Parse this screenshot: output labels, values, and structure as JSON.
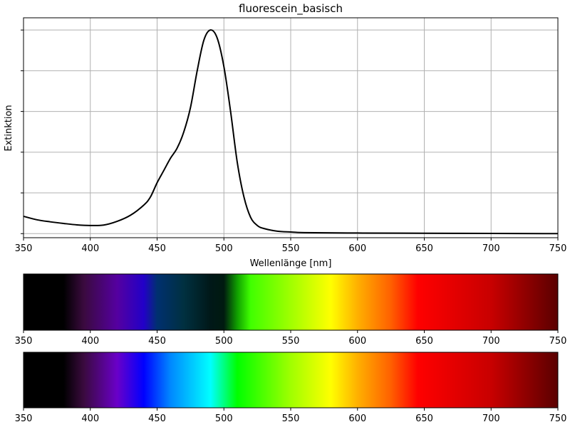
{
  "chart_data": [
    {
      "type": "line",
      "title": "fluorescein_basisch",
      "xlabel": "Wellenlänge [nm]",
      "ylabel": "Extinktion",
      "xlim": [
        350,
        750
      ],
      "ylim": [
        -0.02,
        1.06
      ],
      "x_ticks": [
        350,
        400,
        450,
        500,
        550,
        600,
        650,
        700,
        750
      ],
      "y_ticks": [
        0,
        0.2,
        0.4,
        0.6,
        0.8,
        1.0
      ],
      "y_tick_labels_shown": false,
      "grid": true,
      "series": [
        {
          "color": "#000000",
          "x": [
            350,
            360,
            370,
            380,
            390,
            400,
            410,
            420,
            430,
            440,
            445,
            450,
            455,
            460,
            465,
            470,
            475,
            480,
            485,
            490,
            495,
            500,
            505,
            510,
            515,
            520,
            525,
            530,
            540,
            550,
            560,
            600,
            650,
            700,
            750
          ],
          "y": [
            0.085,
            0.068,
            0.058,
            0.05,
            0.043,
            0.04,
            0.042,
            0.06,
            0.09,
            0.14,
            0.18,
            0.25,
            0.31,
            0.37,
            0.42,
            0.5,
            0.62,
            0.8,
            0.95,
            1.0,
            0.96,
            0.82,
            0.6,
            0.35,
            0.18,
            0.08,
            0.04,
            0.025,
            0.012,
            0.008,
            0.005,
            0.003,
            0.002,
            0.001,
            0.0
          ]
        }
      ]
    },
    {
      "type": "heatmap",
      "description_label": "absorption-weighted spectrum strip",
      "xlim": [
        350,
        750
      ],
      "x_ticks": [
        350,
        400,
        450,
        500,
        550,
        600,
        650,
        700,
        750
      ],
      "stops": [
        {
          "nm": 350,
          "color": "#000000"
        },
        {
          "nm": 380,
          "color": "#000000"
        },
        {
          "nm": 395,
          "color": "#3a0a3e"
        },
        {
          "nm": 420,
          "color": "#5500a0"
        },
        {
          "nm": 440,
          "color": "#2200c8"
        },
        {
          "nm": 450,
          "color": "#003070"
        },
        {
          "nm": 470,
          "color": "#003040"
        },
        {
          "nm": 490,
          "color": "#001818"
        },
        {
          "nm": 500,
          "color": "#001a10"
        },
        {
          "nm": 510,
          "color": "#10a000"
        },
        {
          "nm": 520,
          "color": "#40ff00"
        },
        {
          "nm": 550,
          "color": "#a0ff00"
        },
        {
          "nm": 580,
          "color": "#ffff00"
        },
        {
          "nm": 600,
          "color": "#ffb000"
        },
        {
          "nm": 625,
          "color": "#ff6000"
        },
        {
          "nm": 645,
          "color": "#ff0000"
        },
        {
          "nm": 700,
          "color": "#c80000"
        },
        {
          "nm": 750,
          "color": "#5a0000"
        }
      ]
    },
    {
      "type": "heatmap",
      "description_label": "visible spectrum strip",
      "xlim": [
        350,
        750
      ],
      "x_ticks": [
        350,
        400,
        450,
        500,
        550,
        600,
        650,
        700,
        750
      ],
      "stops": [
        {
          "nm": 350,
          "color": "#000000"
        },
        {
          "nm": 380,
          "color": "#000000"
        },
        {
          "nm": 395,
          "color": "#3a0a3e"
        },
        {
          "nm": 420,
          "color": "#6a00c8"
        },
        {
          "nm": 440,
          "color": "#0000ff"
        },
        {
          "nm": 460,
          "color": "#0088ff"
        },
        {
          "nm": 490,
          "color": "#00ffff"
        },
        {
          "nm": 510,
          "color": "#00ff00"
        },
        {
          "nm": 550,
          "color": "#a0ff00"
        },
        {
          "nm": 580,
          "color": "#ffff00"
        },
        {
          "nm": 600,
          "color": "#ffb000"
        },
        {
          "nm": 625,
          "color": "#ff6000"
        },
        {
          "nm": 645,
          "color": "#ff0000"
        },
        {
          "nm": 700,
          "color": "#c80000"
        },
        {
          "nm": 750,
          "color": "#5a0000"
        }
      ]
    }
  ]
}
